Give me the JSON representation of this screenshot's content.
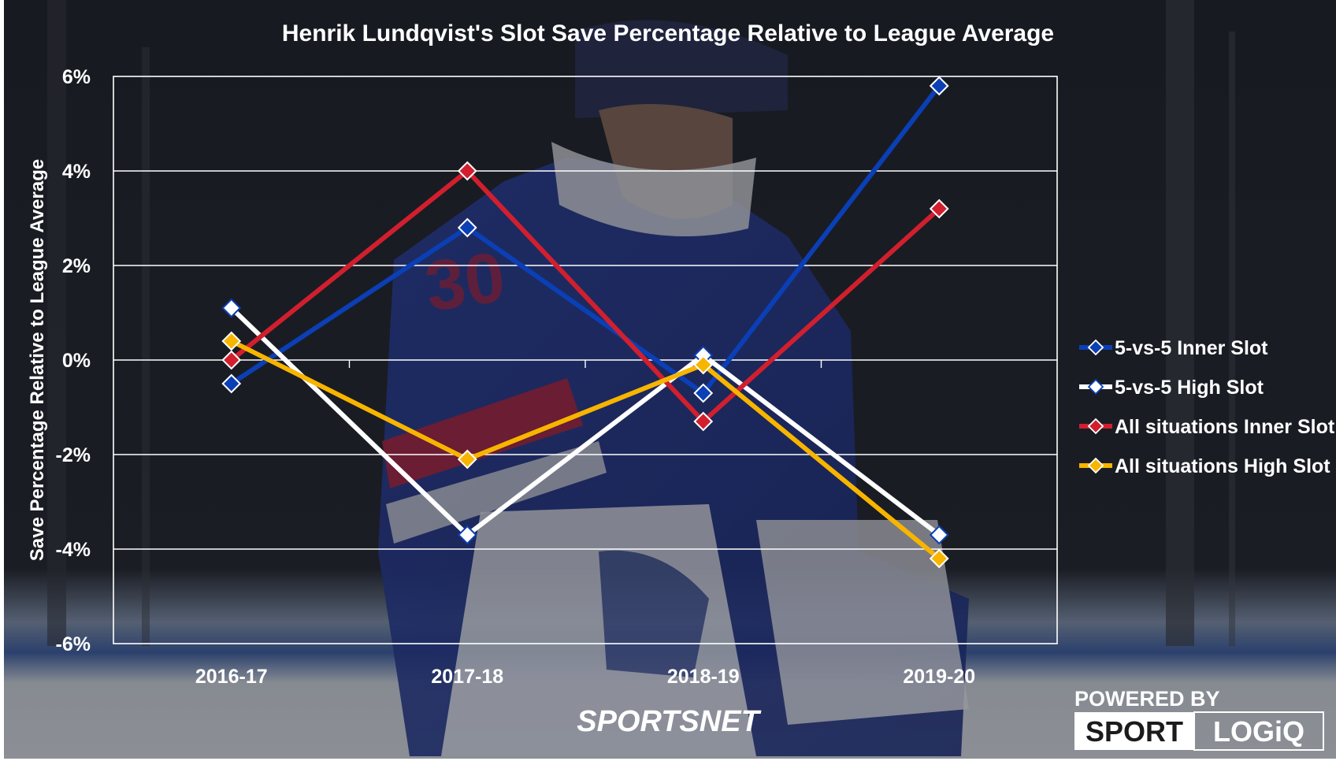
{
  "chart_data": {
    "type": "line",
    "title": "Henrik Lundqvist's Slot Save Percentage Relative to League Average",
    "xlabel": "",
    "ylabel": "Save Percentage Relative to League Average",
    "categories": [
      "2016-17",
      "2017-18",
      "2018-19",
      "2019-20"
    ],
    "ylim": [
      -6,
      6
    ],
    "yticks": [
      6,
      4,
      2,
      0,
      -2,
      -4,
      -6
    ],
    "ytick_labels": [
      "6%",
      "4%",
      "2%",
      "0%",
      "-2%",
      "-4%",
      "-6%"
    ],
    "grid": true,
    "legend_position": "right",
    "series": [
      {
        "name": "5-vs-5 Inner Slot",
        "color": "#0b3fb5",
        "values": [
          -0.5,
          2.8,
          -0.7,
          5.8
        ]
      },
      {
        "name": "5-vs-5 High Slot",
        "color": "#ffffff",
        "values": [
          1.1,
          -3.7,
          0.1,
          -3.7
        ]
      },
      {
        "name": "All situations Inner Slot",
        "color": "#d11f2e",
        "values": [
          0.0,
          4.0,
          -1.3,
          3.2
        ]
      },
      {
        "name": "All situations High Slot",
        "color": "#f7b500",
        "values": [
          0.4,
          -2.1,
          -0.1,
          -4.2
        ]
      }
    ]
  },
  "branding": {
    "sportsnet": "SPORTSNET",
    "powered_by": "POWERED BY",
    "sport": "SPORT",
    "logiq": "LOGiQ"
  },
  "background": {
    "subject": "Henrik Lundqvist goalie photo, New York Rangers #30",
    "jersey_number": "30"
  }
}
